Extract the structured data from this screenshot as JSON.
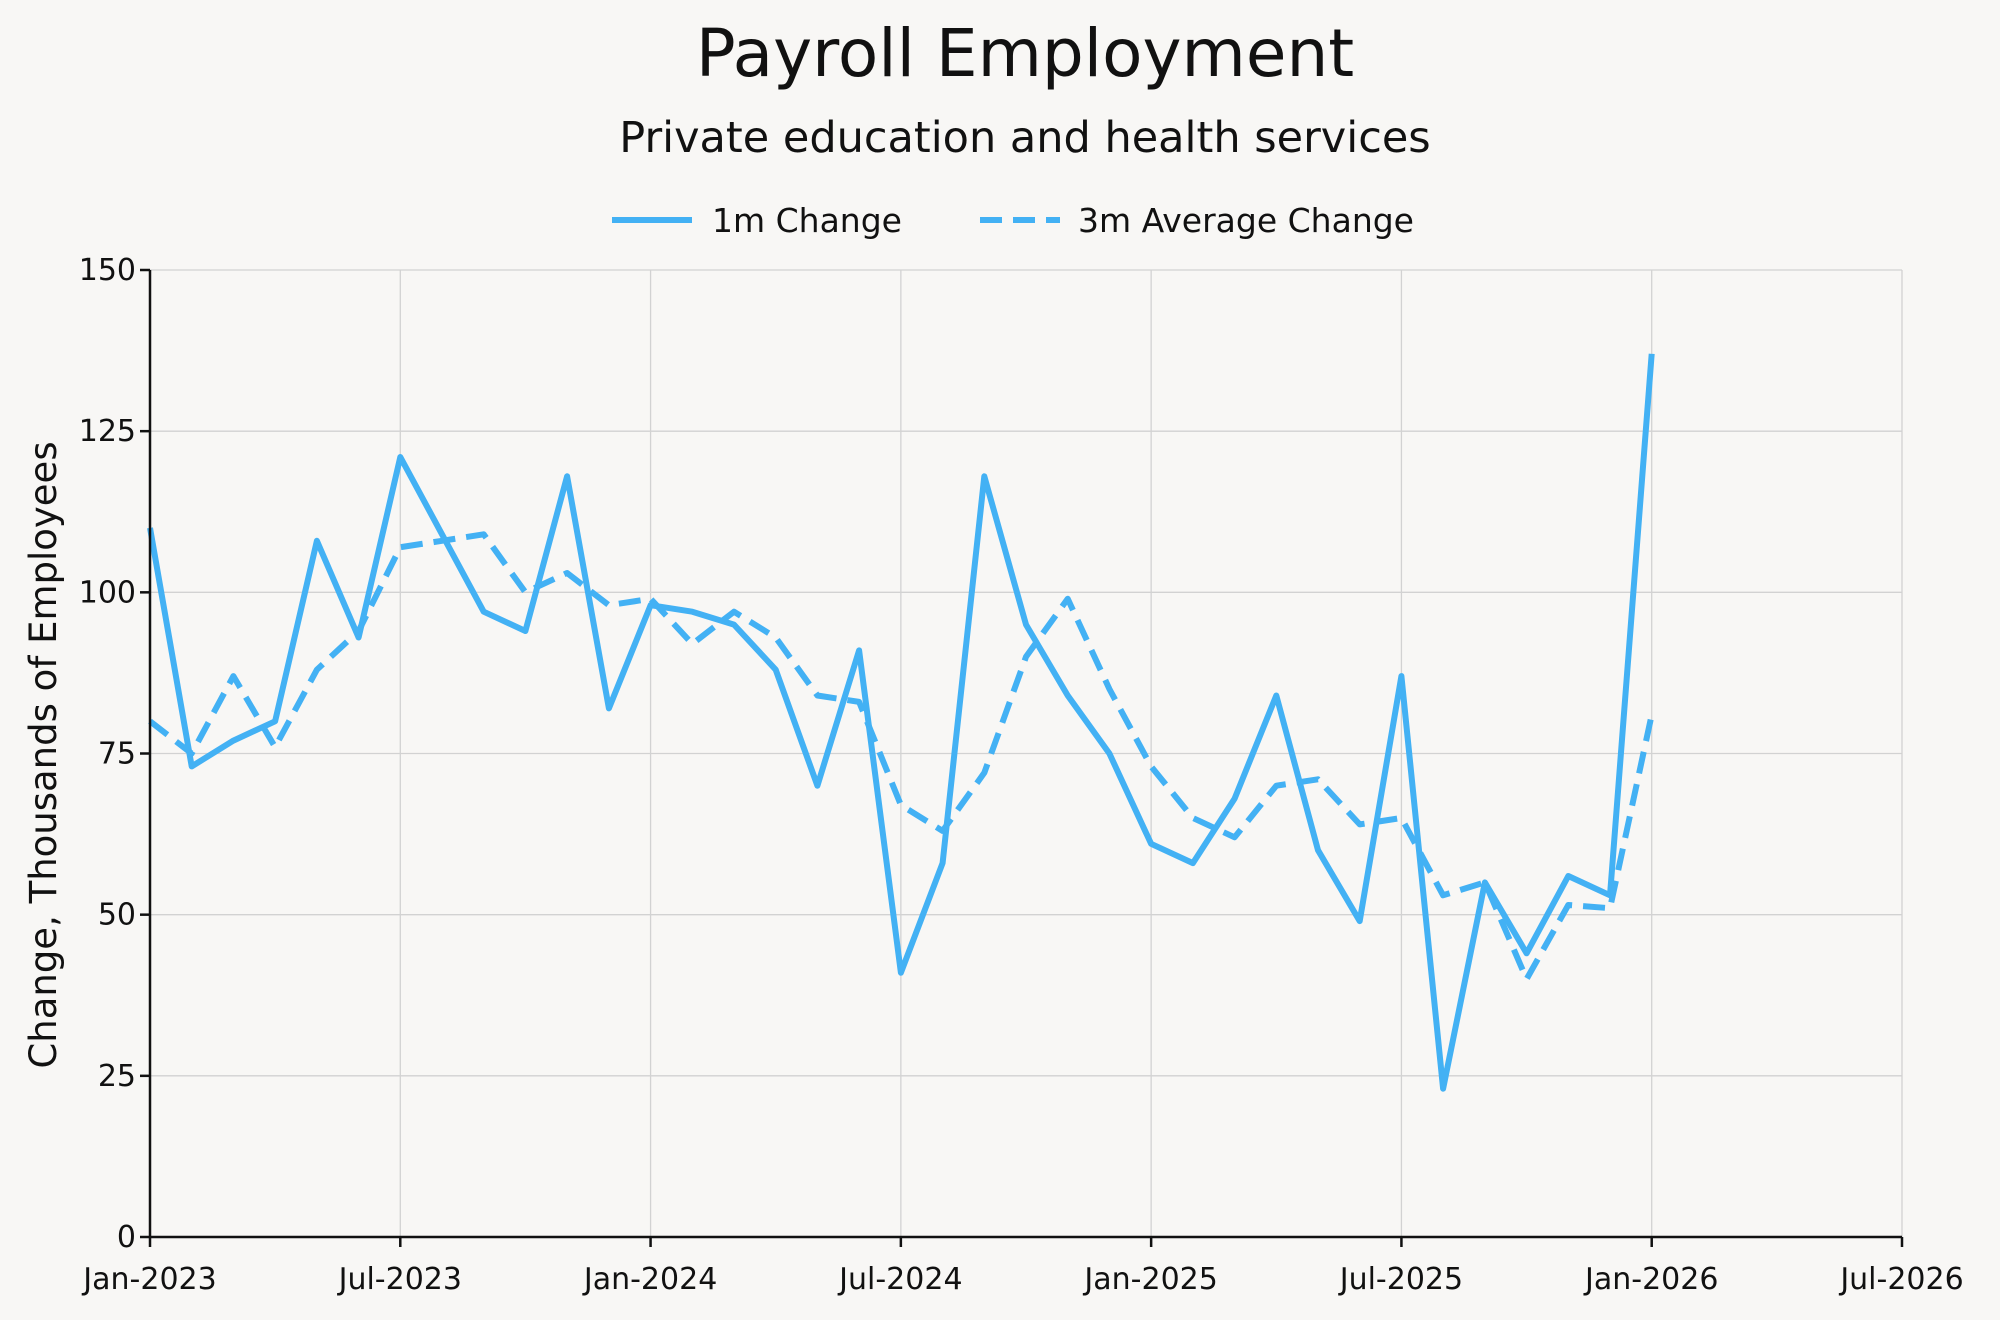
{
  "chart_data": {
    "type": "line",
    "title": "Payroll Employment",
    "subtitle": "Private education and health services",
    "xlabel": "",
    "ylabel": "Change, Thousands of Employees",
    "ylim": [
      0,
      150
    ],
    "xlim": [
      "2023-01",
      "2026-07"
    ],
    "yticks": [
      0,
      25,
      50,
      75,
      100,
      125,
      150
    ],
    "xticks": [
      "Jan-2023",
      "Jul-2023",
      "Jan-2024",
      "Jul-2024",
      "Jan-2025",
      "Jul-2025",
      "Jan-2026",
      "Jul-2026"
    ],
    "grid": true,
    "legend_position": "top-center",
    "color": "#43b1f4",
    "x": [
      "2023-01",
      "2023-02",
      "2023-03",
      "2023-04",
      "2023-05",
      "2023-06",
      "2023-07",
      "2023-08",
      "2023-09",
      "2023-10",
      "2023-11",
      "2023-12",
      "2024-01",
      "2024-02",
      "2024-03",
      "2024-04",
      "2024-05",
      "2024-06",
      "2024-07",
      "2024-08",
      "2024-09",
      "2024-10",
      "2024-11",
      "2024-12",
      "2025-01",
      "2025-02",
      "2025-03",
      "2025-04",
      "2025-05",
      "2025-06",
      "2025-07",
      "2025-08",
      "2025-09",
      "2025-10",
      "2025-11",
      "2025-12",
      "2026-01"
    ],
    "series": [
      {
        "name": "1m Change",
        "style": "solid",
        "values": [
          110,
          73,
          77,
          80,
          108,
          93,
          121,
          109,
          97,
          94,
          118,
          82,
          98,
          97,
          95,
          88,
          70,
          91,
          41,
          58,
          118,
          95,
          84,
          75,
          61,
          58,
          68,
          84,
          60,
          49,
          87,
          23,
          55,
          44,
          56,
          53,
          137
        ]
      },
      {
        "name": "3m Average Change",
        "style": "dashed",
        "values": [
          80,
          75,
          87,
          76,
          88,
          94,
          107,
          108,
          109,
          100,
          103,
          98,
          99,
          92,
          97,
          93,
          84,
          83,
          67,
          63,
          72,
          90,
          99,
          85,
          73,
          65,
          62,
          70,
          71,
          64,
          65,
          53,
          55,
          40,
          51.5,
          51,
          81
        ]
      }
    ]
  }
}
